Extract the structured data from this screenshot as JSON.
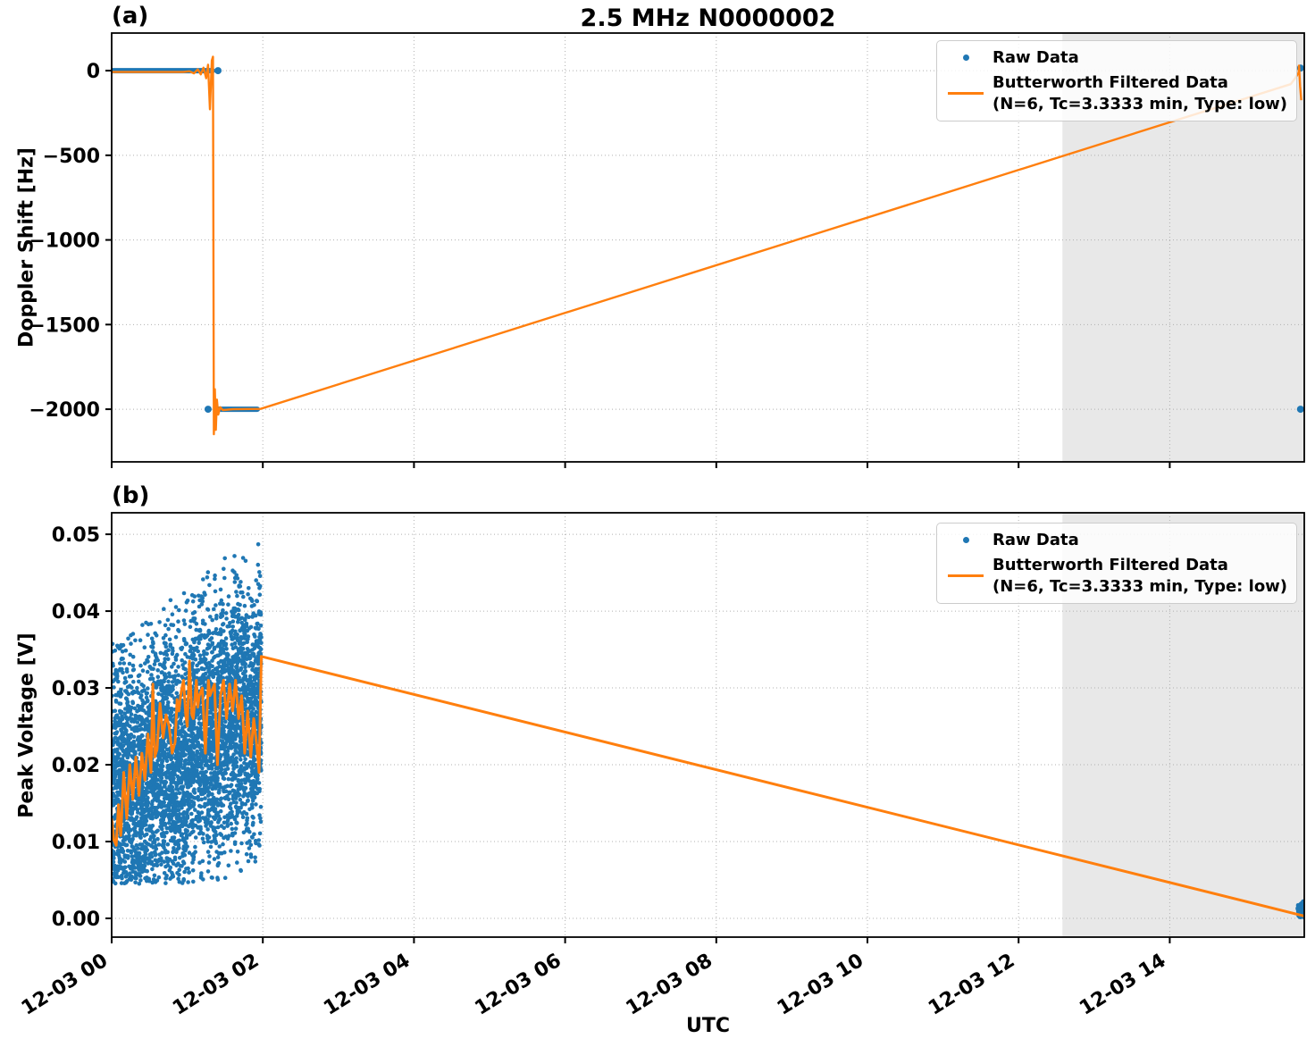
{
  "title": "2.5 MHz N0000002",
  "xlabel": "UTC",
  "panel_labels": {
    "a": "(a)",
    "b": "(b)"
  },
  "colors": {
    "raw": "#1f77b4",
    "filtered": "#ff7f0e",
    "shade": "#e8e8e8",
    "grid": "#b0b0b0",
    "spine": "#000000",
    "text": "#000000",
    "legend_border": "#cccccc"
  },
  "chart_data": [
    {
      "panel": "a",
      "type": "scatter",
      "ylabel": "Doppler Shift [Hz]",
      "x_unit": "hours after 12-03 00:00 UTC",
      "xlim": [
        0,
        15.78
      ],
      "ylim": [
        -2311,
        222
      ],
      "grid": true,
      "legend_position": "upper right",
      "legend": {
        "raw": "Raw Data",
        "filtered_1": "Butterworth Filtered Data",
        "filtered_2": "(N=6, Tc=3.3333 min, Type: low)"
      },
      "xticks": [
        {
          "h": 0,
          "label": "12-03 00"
        },
        {
          "h": 2,
          "label": "12-03 02"
        },
        {
          "h": 4,
          "label": "12-03 04"
        },
        {
          "h": 6,
          "label": "12-03 06"
        },
        {
          "h": 8,
          "label": "12-03 08"
        },
        {
          "h": 10,
          "label": "12-03 10"
        },
        {
          "h": 12,
          "label": "12-03 12"
        },
        {
          "h": 14,
          "label": "12-03 14"
        }
      ],
      "xtick_labels_shown": false,
      "yticks": [
        {
          "v": 0,
          "label": "0"
        },
        {
          "v": -500,
          "label": "−500"
        },
        {
          "v": -1000,
          "label": "−1000"
        },
        {
          "v": -1500,
          "label": "−1500"
        },
        {
          "v": -2000,
          "label": "−2000"
        }
      ],
      "shade_span_hours": [
        12.58,
        15.78
      ],
      "raw": {
        "segments": [
          {
            "y": 0,
            "x": [
              0,
              1.335
            ]
          },
          {
            "y": -2000,
            "x": [
              1.4,
              1.927
            ]
          }
        ],
        "dots": [
          [
            1.276,
            -2000
          ],
          [
            1.407,
            0
          ],
          [
            15.73,
            15
          ],
          [
            15.73,
            -2000
          ]
        ]
      },
      "filtered": [
        [
          0,
          -8
        ],
        [
          0.95,
          -8
        ],
        [
          1.03,
          -4
        ],
        [
          1.09,
          -16
        ],
        [
          1.14,
          8
        ],
        [
          1.18,
          -22
        ],
        [
          1.215,
          18
        ],
        [
          1.25,
          -45
        ],
        [
          1.275,
          35
        ],
        [
          1.3,
          -228
        ],
        [
          1.325,
          60
        ],
        [
          1.34,
          82
        ],
        [
          1.352,
          -2148
        ],
        [
          1.365,
          -1882
        ],
        [
          1.378,
          -2122
        ],
        [
          1.392,
          -1943
        ],
        [
          1.41,
          -2032
        ],
        [
          1.435,
          -1988
        ],
        [
          1.47,
          -2005
        ],
        [
          1.6,
          -2000
        ],
        [
          1.97,
          -1998
        ],
        [
          15.6,
          -80
        ],
        [
          15.66,
          -45
        ],
        [
          15.705,
          -12
        ],
        [
          15.71,
          30
        ],
        [
          15.725,
          -90
        ],
        [
          15.74,
          -175
        ]
      ]
    },
    {
      "panel": "b",
      "type": "scatter",
      "ylabel": "Peak Voltage [V]",
      "x_unit": "hours after 12-03 00:00 UTC",
      "xlim": [
        0,
        15.78
      ],
      "ylim": [
        -0.00244,
        0.0528
      ],
      "grid": true,
      "legend_position": "upper right",
      "legend": {
        "raw": "Raw Data",
        "filtered_1": "Butterworth Filtered Data",
        "filtered_2": "(N=6, Tc=3.3333 min, Type: low)"
      },
      "xticks": [
        {
          "h": 0,
          "label": "12-03 00"
        },
        {
          "h": 2,
          "label": "12-03 02"
        },
        {
          "h": 4,
          "label": "12-03 04"
        },
        {
          "h": 6,
          "label": "12-03 06"
        },
        {
          "h": 8,
          "label": "12-03 08"
        },
        {
          "h": 10,
          "label": "12-03 10"
        },
        {
          "h": 12,
          "label": "12-03 12"
        },
        {
          "h": 14,
          "label": "12-03 14"
        }
      ],
      "xtick_labels_shown": true,
      "yticks": [
        {
          "v": 0.05,
          "label": "0.05"
        },
        {
          "v": 0.04,
          "label": "0.04"
        },
        {
          "v": 0.03,
          "label": "0.03"
        },
        {
          "v": 0.02,
          "label": "0.02"
        },
        {
          "v": 0.01,
          "label": "0.01"
        },
        {
          "v": 0.0,
          "label": "0.00"
        }
      ],
      "shade_span_hours": [
        12.58,
        15.78
      ],
      "raw": {
        "cloud": {
          "t_range": [
            0.0,
            1.98
          ],
          "n": 4500,
          "mean_start": 0.016,
          "mean_end": 0.028,
          "wave_amp": 0.0015,
          "wave_period": 0.5,
          "std": 0.0082,
          "ymin": 0.0045,
          "ymax_start": 0.036,
          "ymax_end": 0.0505,
          "seed": 42
        },
        "cluster": {
          "t_range": [
            15.69,
            15.78
          ],
          "y_mean": 0.001,
          "y_std": 0.0006,
          "y_clip": [
            0.00015,
            0.0022
          ],
          "n": 90,
          "seed": 7
        }
      },
      "filtered": [
        [
          0,
          0.013
        ],
        [
          0.03,
          0.0102
        ],
        [
          0.06,
          0.0095
        ],
        [
          0.09,
          0.0148
        ],
        [
          0.12,
          0.0108
        ],
        [
          0.16,
          0.019
        ],
        [
          0.2,
          0.013
        ],
        [
          0.24,
          0.02
        ],
        [
          0.28,
          0.0155
        ],
        [
          0.32,
          0.021
        ],
        [
          0.36,
          0.016
        ],
        [
          0.4,
          0.0215
        ],
        [
          0.44,
          0.018
        ],
        [
          0.48,
          0.024
        ],
        [
          0.52,
          0.019
        ],
        [
          0.545,
          0.0305
        ],
        [
          0.57,
          0.021
        ],
        [
          0.6,
          0.022
        ],
        [
          0.64,
          0.028
        ],
        [
          0.68,
          0.0235
        ],
        [
          0.72,
          0.0265
        ],
        [
          0.76,
          0.025
        ],
        [
          0.8,
          0.0215
        ],
        [
          0.84,
          0.023
        ],
        [
          0.865,
          0.0285
        ],
        [
          0.89,
          0.027
        ],
        [
          0.92,
          0.0295
        ],
        [
          0.95,
          0.031
        ],
        [
          0.98,
          0.0265
        ],
        [
          1.0,
          0.025
        ],
        [
          1.03,
          0.0335
        ],
        [
          1.06,
          0.0265
        ],
        [
          1.08,
          0.026
        ],
        [
          1.12,
          0.031
        ],
        [
          1.14,
          0.0275
        ],
        [
          1.16,
          0.029
        ],
        [
          1.2,
          0.03
        ],
        [
          1.24,
          0.0215
        ],
        [
          1.28,
          0.031
        ],
        [
          1.3,
          0.029
        ],
        [
          1.32,
          0.0295
        ],
        [
          1.36,
          0.0305
        ],
        [
          1.4,
          0.02
        ],
        [
          1.44,
          0.029
        ],
        [
          1.48,
          0.031
        ],
        [
          1.52,
          0.026
        ],
        [
          1.56,
          0.0305
        ],
        [
          1.6,
          0.027
        ],
        [
          1.64,
          0.031
        ],
        [
          1.68,
          0.026
        ],
        [
          1.72,
          0.029
        ],
        [
          1.76,
          0.0215
        ],
        [
          1.8,
          0.027
        ],
        [
          1.84,
          0.021
        ],
        [
          1.88,
          0.026
        ],
        [
          1.92,
          0.0225
        ],
        [
          1.95,
          0.019
        ],
        [
          1.98,
          0.0341
        ],
        [
          15.78,
          0.0003
        ]
      ]
    }
  ]
}
